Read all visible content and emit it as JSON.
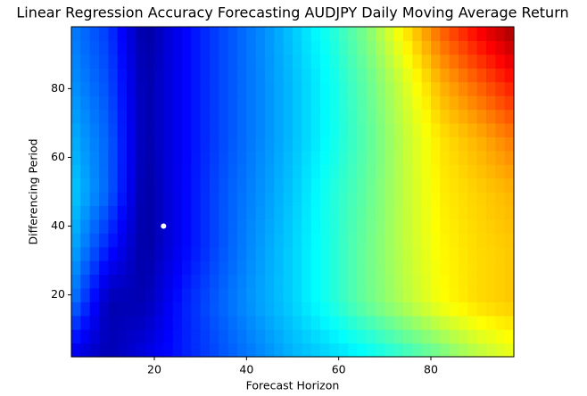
{
  "chart_data": {
    "type": "contour",
    "title": "Linear Regression Accuracy Forecasting AUDJPY Daily Moving Average Return",
    "xlabel": "Forecast Horizon",
    "ylabel": "Differencing Period",
    "colormap": "jet",
    "x": [
      2,
      10,
      18,
      26,
      34,
      42,
      50,
      58,
      66,
      74,
      82,
      90,
      98
    ],
    "y": [
      2,
      18,
      34,
      50,
      66,
      82,
      98
    ],
    "z": [
      [
        0.1,
        0.05,
        0.1,
        0.15,
        0.2,
        0.25,
        0.3,
        0.33,
        0.37,
        0.42,
        0.48,
        0.55,
        0.6
      ],
      [
        0.25,
        0.05,
        0.05,
        0.15,
        0.22,
        0.28,
        0.33,
        0.4,
        0.48,
        0.55,
        0.62,
        0.66,
        0.68
      ],
      [
        0.3,
        0.15,
        0.03,
        0.12,
        0.2,
        0.27,
        0.33,
        0.4,
        0.48,
        0.56,
        0.63,
        0.66,
        0.68
      ],
      [
        0.33,
        0.22,
        0.03,
        0.12,
        0.2,
        0.26,
        0.32,
        0.4,
        0.47,
        0.56,
        0.64,
        0.67,
        0.7
      ],
      [
        0.3,
        0.22,
        0.04,
        0.12,
        0.19,
        0.25,
        0.31,
        0.38,
        0.46,
        0.56,
        0.65,
        0.7,
        0.76
      ],
      [
        0.27,
        0.2,
        0.04,
        0.12,
        0.19,
        0.25,
        0.31,
        0.38,
        0.47,
        0.58,
        0.7,
        0.78,
        0.86
      ],
      [
        0.25,
        0.18,
        0.03,
        0.12,
        0.19,
        0.25,
        0.32,
        0.4,
        0.5,
        0.64,
        0.78,
        0.88,
        0.97
      ]
    ],
    "marker": {
      "x": 22,
      "y": 40,
      "color": "#ffffff"
    },
    "xlim": [
      2,
      98
    ],
    "ylim": [
      2,
      98
    ],
    "xticks": [
      20,
      40,
      60,
      80
    ],
    "yticks": [
      20,
      40,
      60,
      80
    ]
  }
}
